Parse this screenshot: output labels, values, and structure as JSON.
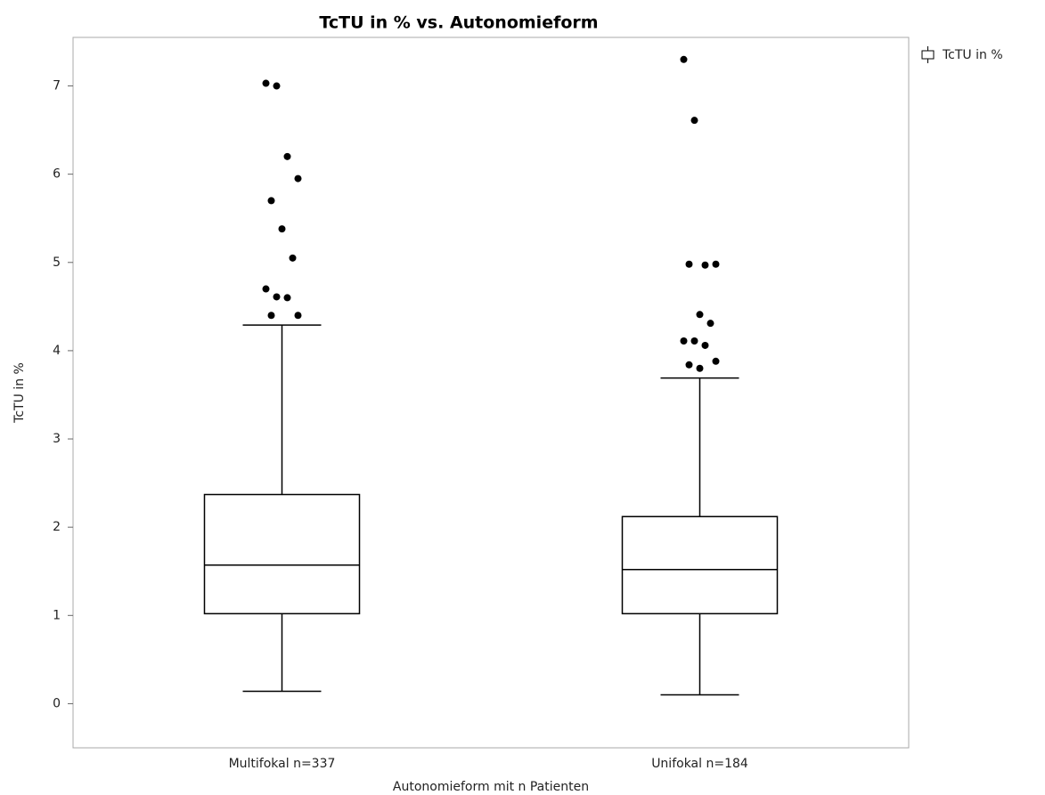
{
  "chart_data": {
    "type": "box",
    "title": "TcTU in % vs. Autonomieform",
    "x_label": "Autonomieform mit n Patienten",
    "y_label": "TcTU in %",
    "categories": [
      "Multifokal n=337",
      "Unifokal n=184"
    ],
    "series": [
      {
        "name": "TcTU in %",
        "color": "#000000",
        "boxes": [
          {
            "whisker_low": 0.14,
            "q1": 1.02,
            "median": 1.57,
            "q3": 2.37,
            "whisker_high": 4.29,
            "outliers": [
              7.03,
              7.0,
              6.2,
              5.95,
              5.7,
              5.38,
              5.05,
              4.7,
              4.61,
              4.6,
              4.4,
              4.4
            ]
          },
          {
            "whisker_low": 0.1,
            "q1": 1.02,
            "median": 1.52,
            "q3": 2.12,
            "whisker_high": 3.69,
            "outliers": [
              7.3,
              6.61,
              4.97,
              4.98,
              4.98,
              4.41,
              4.31,
              4.11,
              4.11,
              4.06,
              3.88,
              3.84,
              3.8
            ]
          }
        ]
      }
    ],
    "ylim": [
      -0.5,
      7.55
    ],
    "yticks": [
      0,
      1,
      2,
      3,
      4,
      5,
      6,
      7
    ],
    "grid": false,
    "legend": "top-right"
  }
}
